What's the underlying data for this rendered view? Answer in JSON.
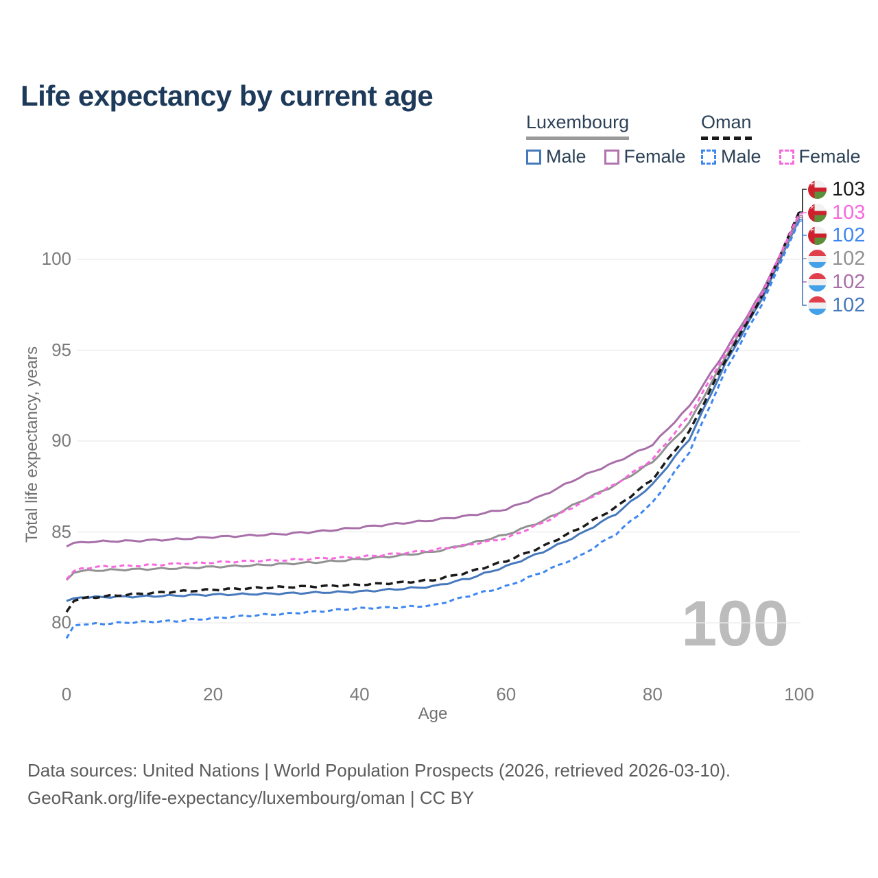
{
  "title": "Life expectancy by current age",
  "watermark": "100",
  "axes": {
    "y_title": "Total life expectancy, years",
    "x_title": "Age",
    "y_ticks": [
      80,
      85,
      90,
      95,
      100
    ],
    "x_ticks": [
      0,
      20,
      40,
      60,
      80,
      100
    ]
  },
  "legend": {
    "groups": [
      {
        "name": "Luxembourg",
        "line_color": "#9a9a9a",
        "line_dash": false,
        "items": [
          {
            "label": "Male",
            "color": "#4678bc",
            "dash": false
          },
          {
            "label": "Female",
            "color": "#b172ae",
            "dash": false
          }
        ]
      },
      {
        "name": "Oman",
        "line_color": "#1a1a1a",
        "line_dash": true,
        "items": [
          {
            "label": "Male",
            "color": "#3d86f0",
            "dash": true
          },
          {
            "label": "Female",
            "color": "#f768df",
            "dash": true
          }
        ]
      }
    ]
  },
  "end_labels": [
    {
      "series": "oman_both",
      "value": "103",
      "flag": "oman"
    },
    {
      "series": "oman_female",
      "value": "103",
      "flag": "oman"
    },
    {
      "series": "oman_male",
      "value": "102",
      "flag": "oman"
    },
    {
      "series": "lux_both",
      "value": "102",
      "flag": "luxembourg"
    },
    {
      "series": "lux_female",
      "value": "102",
      "flag": "luxembourg"
    },
    {
      "series": "lux_male",
      "value": "102",
      "flag": "luxembourg"
    }
  ],
  "footer": {
    "line1": "Data sources: United Nations | World Population Prospects (2026, retrieved 2026-03-10).",
    "line2": "GeoRank.org/life-expectancy/luxembourg/oman | CC BY"
  },
  "colors": {
    "title_text": "#1d3a5a",
    "grid": "#ebebeb",
    "tick_text": "#7a7a7a",
    "watermark": "#bcbcbc"
  },
  "chart_data": {
    "type": "line",
    "title": "Life expectancy by current age",
    "xlabel": "Age",
    "ylabel": "Total life expectancy, years",
    "xlim": [
      0,
      100
    ],
    "ylim": [
      78.8,
      103.2
    ],
    "grid": "horizontal-only",
    "legend_position": "top-right",
    "ages": [
      0,
      1,
      2,
      5,
      10,
      15,
      20,
      25,
      30,
      35,
      40,
      45,
      50,
      55,
      60,
      65,
      70,
      75,
      80,
      85,
      90,
      95,
      100
    ],
    "series": [
      {
        "id": "lux_male",
        "name": "Luxembourg — Male",
        "color": "#4678bc",
        "dash": false,
        "width": 3,
        "values": [
          81.2,
          81.35,
          81.4,
          81.42,
          81.45,
          81.5,
          81.55,
          81.58,
          81.62,
          81.67,
          81.72,
          81.85,
          82.0,
          82.45,
          83.1,
          83.9,
          84.85,
          86.0,
          87.6,
          90.1,
          94.3,
          97.9,
          102.2
        ]
      },
      {
        "id": "lux_both",
        "name": "Luxembourg — Both sexes",
        "color": "#919191",
        "dash": false,
        "width": 3,
        "values": [
          82.35,
          82.75,
          82.85,
          82.9,
          82.95,
          83.0,
          83.08,
          83.15,
          83.25,
          83.35,
          83.5,
          83.68,
          83.9,
          84.35,
          84.85,
          85.6,
          86.65,
          87.6,
          88.85,
          91.0,
          94.65,
          98.1,
          102.3
        ]
      },
      {
        "id": "lux_female",
        "name": "Luxembourg — Female",
        "color": "#a86fa8",
        "dash": false,
        "width": 3,
        "values": [
          84.2,
          84.4,
          84.45,
          84.48,
          84.52,
          84.6,
          84.72,
          84.8,
          84.9,
          85.05,
          85.25,
          85.45,
          85.65,
          85.9,
          86.25,
          87.0,
          88.0,
          88.85,
          89.8,
          91.9,
          95.0,
          98.25,
          102.4
        ]
      },
      {
        "id": "oman_male",
        "name": "Oman — Male",
        "color": "#3d86f0",
        "dash": true,
        "width": 3,
        "values": [
          79.15,
          79.85,
          79.9,
          79.95,
          80.05,
          80.1,
          80.25,
          80.4,
          80.5,
          80.65,
          80.8,
          80.85,
          80.95,
          81.5,
          82.0,
          82.8,
          83.65,
          84.9,
          86.6,
          89.4,
          93.9,
          97.6,
          102.1
        ]
      },
      {
        "id": "oman_both",
        "name": "Oman — Both sexes",
        "color": "#1a1a1a",
        "dash": true,
        "width": 3.5,
        "values": [
          80.6,
          81.2,
          81.35,
          81.45,
          81.6,
          81.72,
          81.82,
          81.9,
          81.97,
          82.02,
          82.1,
          82.2,
          82.35,
          82.8,
          83.4,
          84.2,
          85.2,
          86.35,
          87.9,
          90.5,
          94.5,
          98.0,
          102.6
        ]
      },
      {
        "id": "oman_female",
        "name": "Oman — Female",
        "color": "#f768df",
        "dash": true,
        "width": 3,
        "values": [
          82.4,
          82.85,
          83.0,
          83.1,
          83.15,
          83.25,
          83.32,
          83.4,
          83.45,
          83.55,
          83.62,
          83.8,
          84.0,
          84.3,
          84.65,
          85.5,
          86.55,
          87.65,
          89.0,
          91.4,
          94.85,
          98.15,
          102.5
        ]
      }
    ]
  }
}
